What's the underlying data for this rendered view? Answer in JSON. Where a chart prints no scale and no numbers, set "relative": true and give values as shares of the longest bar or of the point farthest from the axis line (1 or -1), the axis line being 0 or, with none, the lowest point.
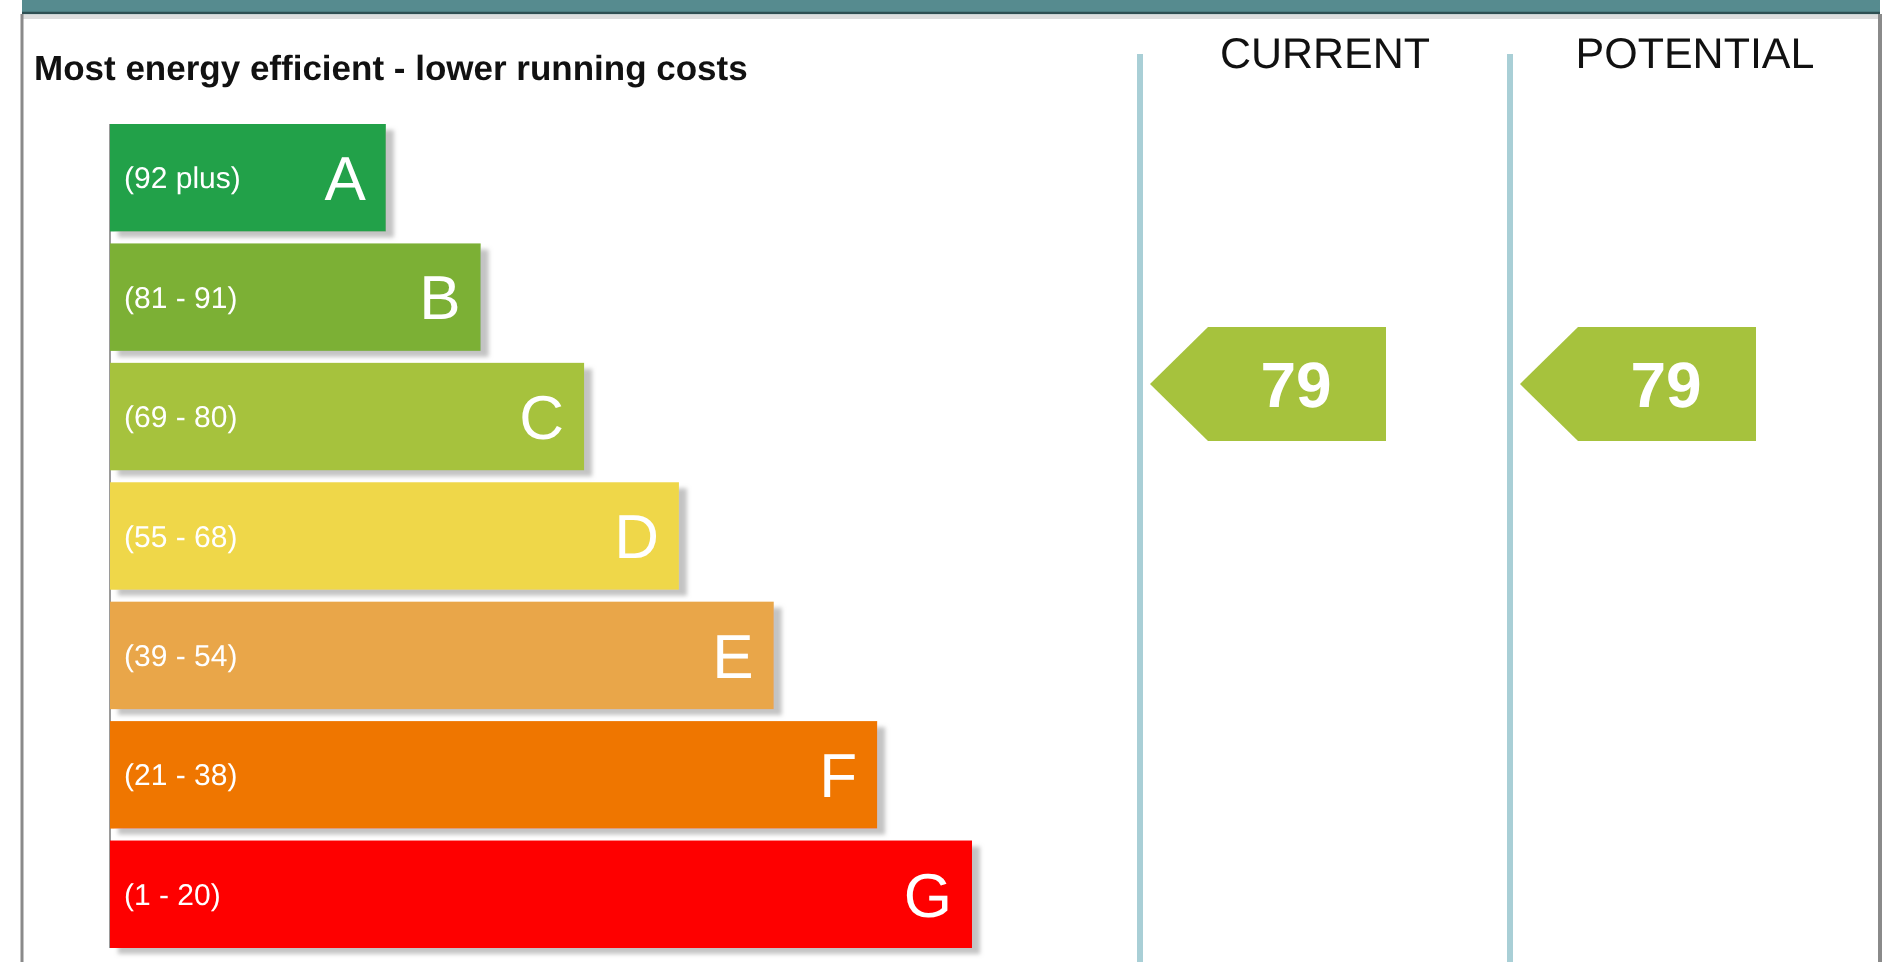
{
  "chart_data": {
    "type": "bar",
    "orientation": "horizontal",
    "relative": true,
    "title": "Most energy efficient - lower running costs",
    "categories": [
      "(92 plus) A",
      "(81 - 91) B",
      "(69 - 80) C",
      "(55 - 68) D",
      "(39 - 54) E",
      "(21 - 38) F",
      "(1 - 20) G"
    ],
    "values": [
      0.32,
      0.43,
      0.55,
      0.66,
      0.77,
      0.89,
      1
    ],
    "colors": [
      "#23a14a",
      "#7cb035",
      "#a6c23d",
      "#efd74a",
      "#e9a64a",
      "#ef7600",
      "#fe0000"
    ],
    "annotations": [
      "CURRENT",
      "79",
      "POTENTIAL",
      "79"
    ]
  }
}
